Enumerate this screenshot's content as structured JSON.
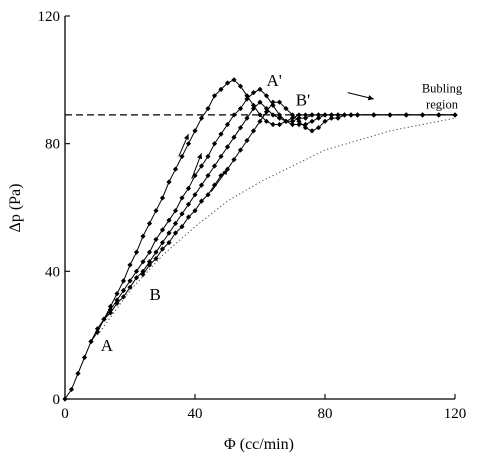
{
  "chart_data": {
    "type": "line",
    "xlabel": "Φ (cc/min)",
    "ylabel": "Δp (Pa)",
    "xlim": [
      0,
      120
    ],
    "ylim": [
      0,
      120
    ],
    "x_ticks": [
      0,
      40,
      80,
      120
    ],
    "y_ticks": [
      0,
      40,
      80,
      120
    ],
    "grid": false,
    "series": [
      {
        "style": "solid-diamond",
        "x": [
          0,
          2,
          4,
          6,
          8,
          10,
          12,
          14,
          16,
          18,
          20,
          22,
          24,
          26,
          28,
          30,
          32,
          34,
          36,
          38,
          40,
          42,
          44,
          46,
          48,
          50,
          52,
          54,
          56,
          58,
          60,
          62,
          64,
          66,
          68,
          70,
          72,
          74,
          76,
          78,
          80,
          82,
          84,
          86,
          88,
          90,
          95,
          100,
          105,
          110,
          115,
          120
        ],
        "y": [
          0,
          3,
          8,
          13,
          18,
          22,
          25,
          29,
          33,
          37,
          42,
          46,
          51,
          55,
          59,
          63,
          68,
          72,
          76,
          80,
          84,
          88,
          91,
          95,
          97,
          99,
          100,
          98,
          95,
          92,
          89,
          87,
          86,
          86,
          87,
          88,
          89,
          89,
          89,
          89,
          89,
          89,
          89,
          89,
          89,
          89,
          89,
          89,
          89,
          89,
          89,
          89
        ]
      },
      {
        "style": "solid-diamond",
        "x": [
          8,
          10,
          12,
          14,
          16,
          18,
          20,
          22,
          24,
          26,
          28,
          30,
          32,
          34,
          36,
          38,
          40,
          42,
          44,
          46,
          48,
          50,
          52,
          54,
          56,
          58,
          60,
          62,
          64,
          66,
          68,
          70,
          72,
          74,
          76,
          78,
          80,
          82,
          84,
          86,
          88,
          90,
          95,
          100,
          105,
          110,
          115,
          120
        ],
        "y": [
          18,
          21,
          25,
          28,
          31,
          34,
          37,
          40,
          43,
          46,
          50,
          53,
          56,
          59,
          63,
          66,
          70,
          73,
          76,
          80,
          83,
          86,
          89,
          91,
          94,
          96,
          97,
          95,
          92,
          89,
          87,
          86,
          86,
          86,
          87,
          88,
          89,
          89,
          89,
          89,
          89,
          89,
          89,
          89,
          89,
          89,
          89,
          89
        ]
      },
      {
        "style": "solid-diamond",
        "x": [
          12,
          14,
          16,
          18,
          20,
          22,
          24,
          26,
          28,
          30,
          32,
          34,
          36,
          38,
          40,
          42,
          44,
          46,
          48,
          50,
          52,
          54,
          56,
          58,
          60,
          62,
          64,
          66,
          68,
          70,
          72,
          74,
          76,
          78,
          80,
          82,
          84,
          86,
          88,
          90,
          95,
          100,
          105,
          110,
          115,
          120
        ],
        "y": [
          25,
          27,
          30,
          32,
          35,
          38,
          40,
          43,
          46,
          49,
          52,
          55,
          58,
          61,
          64,
          67,
          70,
          73,
          76,
          79,
          82,
          85,
          88,
          91,
          93,
          91,
          89,
          88,
          87,
          87,
          88,
          88,
          89,
          89,
          89,
          89,
          89,
          89,
          89,
          89,
          89,
          89,
          89,
          89,
          89,
          89
        ]
      },
      {
        "style": "solid-diamond",
        "x": [
          24,
          26,
          28,
          30,
          32,
          34,
          36,
          38,
          40,
          42,
          44,
          46,
          48,
          50,
          52,
          54,
          56,
          58,
          60,
          62,
          64,
          66,
          68,
          70,
          72,
          74,
          76,
          78,
          80,
          82,
          84,
          86,
          88,
          90,
          95,
          100,
          105,
          110,
          115,
          120
        ],
        "y": [
          39,
          42,
          44,
          47,
          49,
          52,
          54,
          57,
          59,
          62,
          64,
          67,
          70,
          72,
          75,
          78,
          81,
          84,
          87,
          90,
          93,
          93,
          91,
          89,
          87,
          85,
          84,
          85,
          87,
          88,
          88,
          89,
          89,
          89,
          89,
          89,
          89,
          89,
          89,
          89
        ]
      },
      {
        "style": "dotted",
        "x": [
          10,
          20,
          30,
          40,
          50,
          60,
          70,
          80,
          90,
          100,
          110,
          120
        ],
        "y": [
          20,
          34,
          45,
          54,
          62,
          68,
          73,
          78,
          81,
          84,
          86,
          88
        ]
      },
      {
        "style": "dashed",
        "x": [
          0,
          120
        ],
        "y": [
          89,
          89
        ]
      }
    ],
    "annotations": [
      {
        "text": "A",
        "x": 11,
        "y": 15
      },
      {
        "text": "B",
        "x": 26,
        "y": 31
      },
      {
        "text": "A'",
        "x": 62,
        "y": 98
      },
      {
        "text": "B'",
        "x": 71,
        "y": 92
      },
      {
        "text": "Bubling",
        "x": 116,
        "y": 96,
        "small": true
      },
      {
        "text": "region",
        "x": 116,
        "y": 91,
        "small": true
      }
    ],
    "arrows": [
      {
        "from": [
          35,
          76
        ],
        "to": [
          38,
          83
        ]
      },
      {
        "from": [
          39,
          69
        ],
        "to": [
          42,
          77
        ]
      },
      {
        "from": [
          45,
          65
        ],
        "to": [
          50,
          72
        ]
      },
      {
        "from": [
          87,
          96
        ],
        "to": [
          95,
          94
        ]
      }
    ]
  }
}
